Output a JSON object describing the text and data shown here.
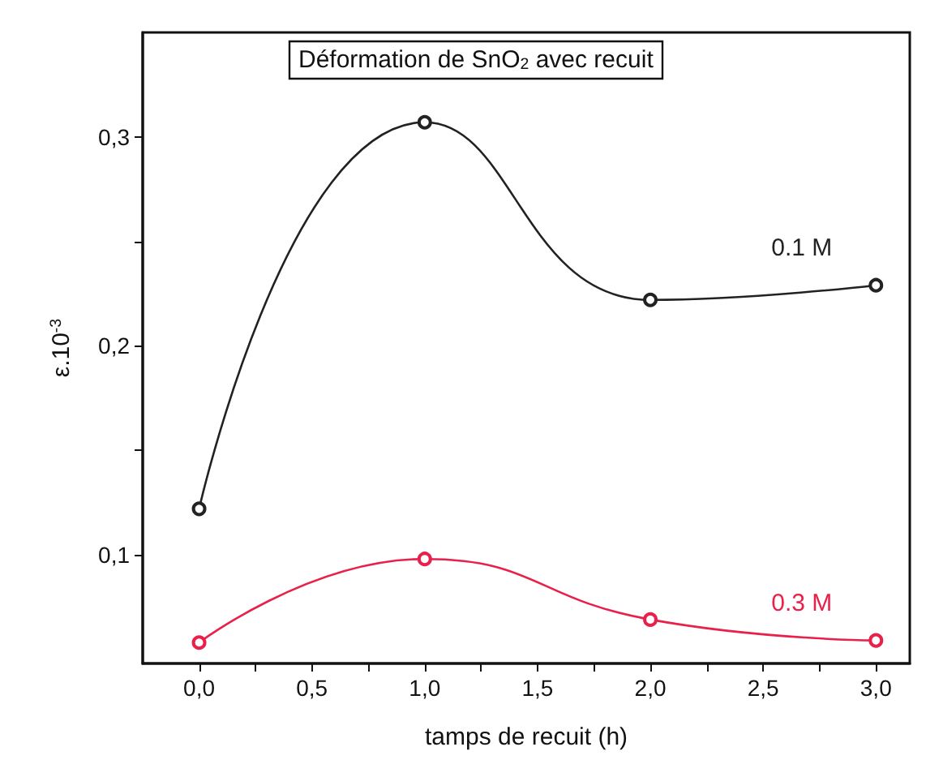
{
  "chart_data": {
    "type": "line",
    "title": "Déformation de SnO$_{2}$ avec recuit",
    "xlabel": "tamps de recuit (h)",
    "ylabel": "ε.10$^{-3}$",
    "x": [
      0,
      1,
      2,
      3
    ],
    "series": [
      {
        "name": "0.1 M",
        "color": "#222222",
        "values": [
          0.122,
          0.307,
          0.222,
          0.229
        ]
      },
      {
        "name": "0.3 M",
        "color": "#e8204a",
        "values": [
          0.058,
          0.098,
          0.069,
          0.059
        ]
      }
    ],
    "xlim": [
      -0.25,
      3.15
    ],
    "xticks": [
      {
        "value": 0,
        "label": "0,0"
      },
      {
        "value": 0.25,
        "label": null
      },
      {
        "value": 0.5,
        "label": "0,5"
      },
      {
        "value": 0.75,
        "label": null
      },
      {
        "value": 1,
        "label": "1,0"
      },
      {
        "value": 1.25,
        "label": null
      },
      {
        "value": 1.5,
        "label": "1,5"
      },
      {
        "value": 1.75,
        "label": null
      },
      {
        "value": 2,
        "label": "2,0"
      },
      {
        "value": 2.25,
        "label": null
      },
      {
        "value": 2.5,
        "label": "2,5"
      },
      {
        "value": 2.75,
        "label": null
      },
      {
        "value": 3,
        "label": "3,0"
      }
    ],
    "ylim": [
      0.048,
      0.35
    ],
    "yticks": [
      {
        "value": 0.1,
        "label": "0,1"
      },
      {
        "value": 0.15,
        "label": null
      },
      {
        "value": 0.2,
        "label": "0,2"
      },
      {
        "value": 0.25,
        "label": null
      },
      {
        "value": 0.3,
        "label": "0,3"
      }
    ],
    "marker": "circle",
    "line_style": "solid",
    "legend": false
  }
}
